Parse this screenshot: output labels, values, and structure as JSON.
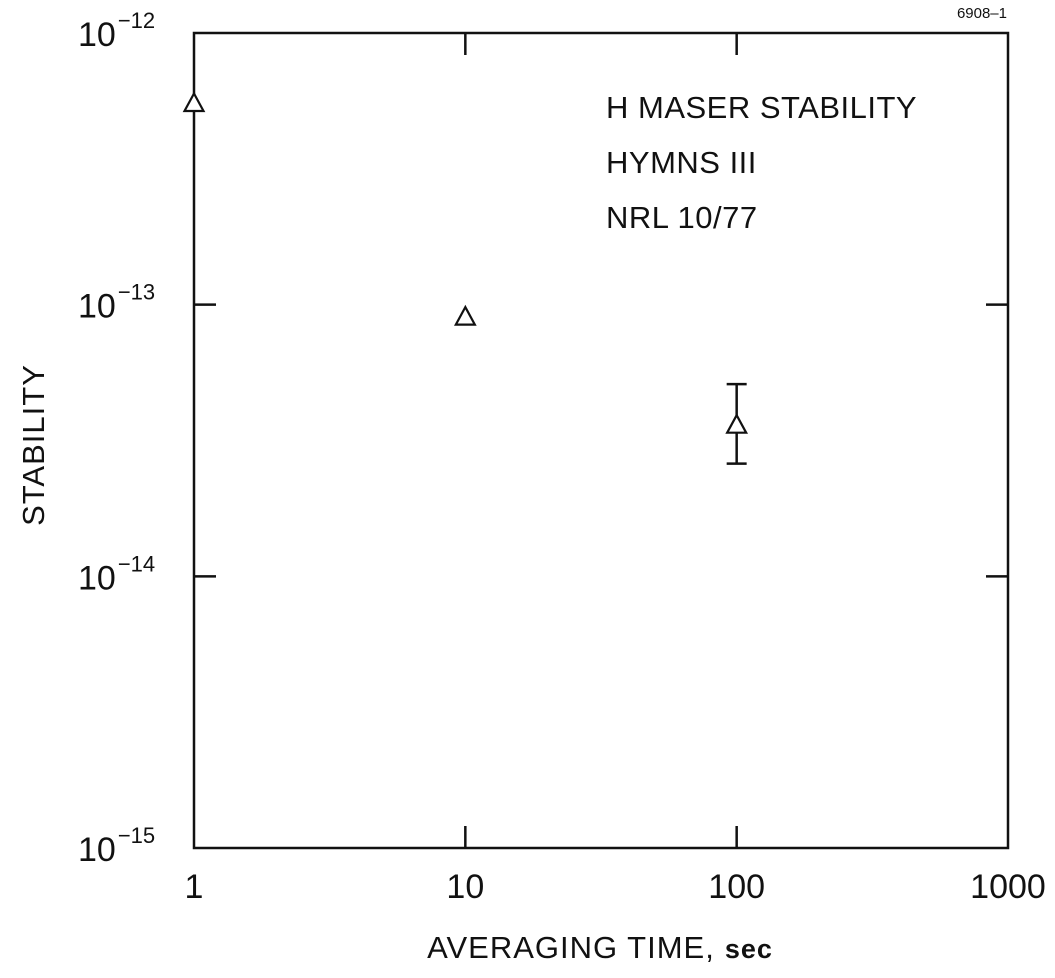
{
  "figure_number": "6908–1",
  "chart_data": {
    "type": "scatter",
    "title": "",
    "xlabel": "AVERAGING TIME,",
    "xlabel_unit": "sec",
    "ylabel": "STABILITY",
    "x_scale": "log",
    "y_scale": "log",
    "xlim": [
      1,
      1000
    ],
    "ylim": [
      1e-15,
      1e-12
    ],
    "grid": false,
    "x_ticks": [
      {
        "value": 1,
        "label": "1"
      },
      {
        "value": 10,
        "label": "10"
      },
      {
        "value": 100,
        "label": "100"
      },
      {
        "value": 1000,
        "label": "1000"
      }
    ],
    "y_ticks": [
      {
        "value": 1e-15,
        "base": "10",
        "exponent": "−15"
      },
      {
        "value": 1e-14,
        "base": "10",
        "exponent": "−14"
      },
      {
        "value": 1e-13,
        "base": "10",
        "exponent": "−13"
      },
      {
        "value": 1e-12,
        "base": "10",
        "exponent": "−12"
      }
    ],
    "annotation": [
      "H MASER STABILITY",
      "HYMNS III",
      "NRL 10/77"
    ],
    "annotation_placement": "top-right",
    "marker": "open-triangle",
    "points": [
      {
        "x": 1,
        "y": 5.5e-13
      },
      {
        "x": 10,
        "y": 9e-14
      },
      {
        "x": 100,
        "y": 3.6e-14,
        "y_err_low": 2.6e-14,
        "y_err_high": 5.1e-14
      }
    ]
  }
}
